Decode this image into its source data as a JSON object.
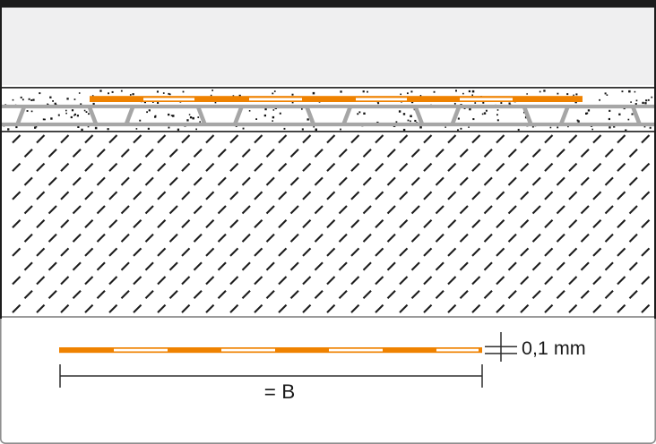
{
  "diagram": {
    "dimension_thickness_label": "0,1 mm",
    "dimension_width_label": "= B",
    "colors": {
      "accent": "#ef8200",
      "surface_gray": "#efeff0",
      "membrane_gray": "#a6a6a6",
      "line_dark": "#2e2e2e",
      "stipple_black": "#141414",
      "hatch_black": "#1d1d1d",
      "substrate_bottom_gray": "#9b9b9b",
      "frame_gray": "#8f8f8f",
      "frame_black": "#1c1c1c",
      "text": "#1a1a1a"
    }
  }
}
